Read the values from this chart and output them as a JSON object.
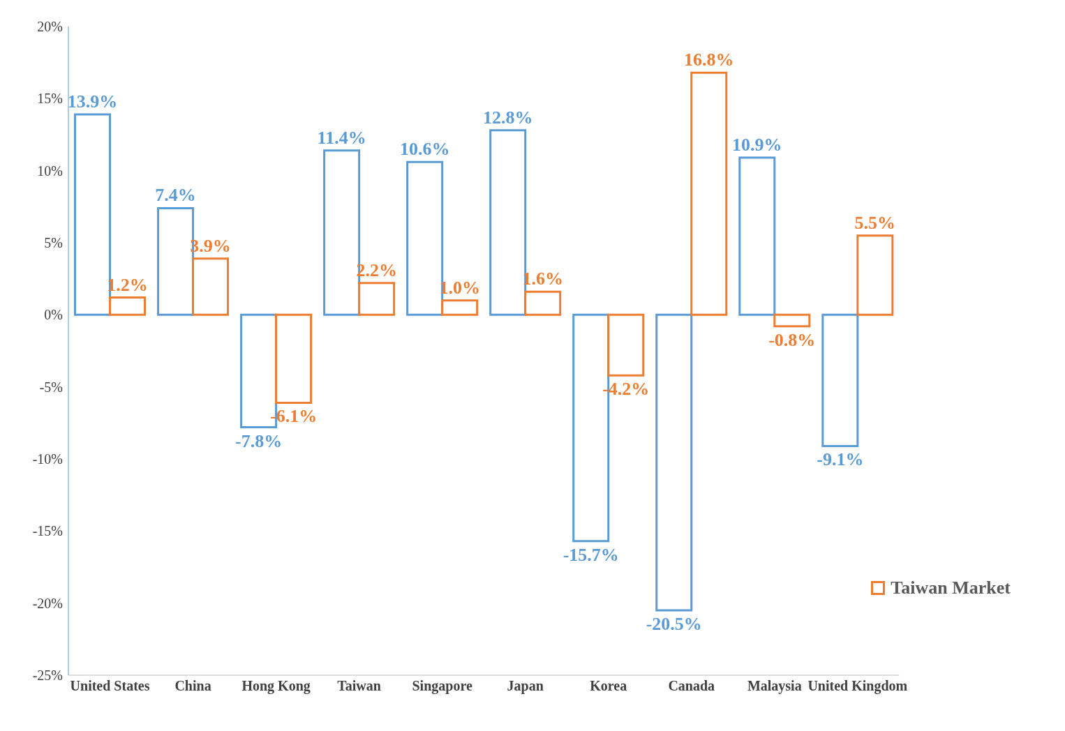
{
  "chart_data": {
    "type": "bar",
    "categories": [
      "United States",
      "China",
      "Hong Kong",
      "Taiwan",
      "Singapore",
      "Japan",
      "Korea",
      "Canada",
      "Malaysia",
      "United Kingdom"
    ],
    "series": [
      {
        "color": "#5b9bd5",
        "values": [
          13.9,
          7.4,
          -7.8,
          11.4,
          10.6,
          12.8,
          -15.7,
          -20.5,
          10.9,
          -9.1
        ],
        "value_labels": [
          "13.9%",
          "7.4%",
          "-7.8%",
          "11.4%",
          "10.6%",
          "12.8%",
          "-15.7%",
          "-20.5%",
          "10.9%",
          "-9.1%"
        ]
      },
      {
        "name": "Taiwan Market",
        "color": "#ed7d31",
        "values": [
          1.2,
          3.9,
          -6.1,
          2.2,
          1.0,
          1.6,
          -4.2,
          16.8,
          -0.8,
          5.5
        ],
        "value_labels": [
          "1.2%",
          "3.9%",
          "-6.1%",
          "2.2%",
          "1.0%",
          "1.6%",
          "-4.2%",
          "16.8%",
          "-0.8%",
          "5.5%"
        ]
      }
    ],
    "ylim": [
      -25,
      20
    ],
    "yticks": [
      {
        "value": -25,
        "label": "-25%"
      },
      {
        "value": -20,
        "label": "-20%"
      },
      {
        "value": -15,
        "label": "-15%"
      },
      {
        "value": -10,
        "label": "-10%"
      },
      {
        "value": -5,
        "label": "-5%"
      },
      {
        "value": 0,
        "label": "0%"
      },
      {
        "value": 5,
        "label": "5%"
      },
      {
        "value": 10,
        "label": "10%"
      },
      {
        "value": 15,
        "label": "15%"
      },
      {
        "value": 20,
        "label": "20%"
      }
    ],
    "grid": false,
    "legend": "bottom right"
  }
}
